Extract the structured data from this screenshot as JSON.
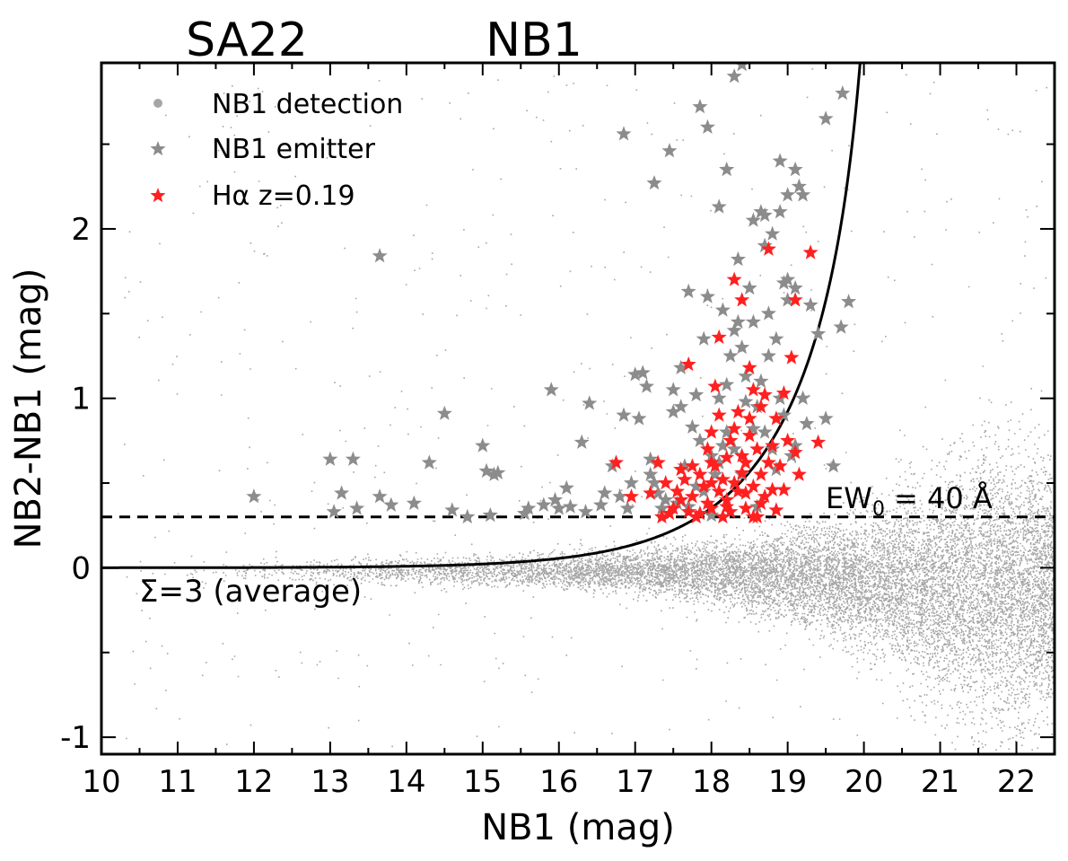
{
  "chart_data": {
    "type": "scatter",
    "title_left": "SA22",
    "title_right": "NB1",
    "xlabel": "NB1 (mag)",
    "ylabel": "NB2-NB1 (mag)",
    "xlim": [
      10,
      22.5
    ],
    "ylim": [
      -1.1,
      2.98
    ],
    "xticks": [
      10,
      11,
      12,
      13,
      14,
      15,
      16,
      17,
      18,
      19,
      20,
      21,
      22
    ],
    "yticks": [
      -1,
      0,
      1,
      2
    ],
    "ytick_labels": [
      "-1",
      "0",
      "1",
      "2"
    ],
    "legend": [
      {
        "label": "NB1 detection",
        "marker": "dot",
        "color": "#a6a6a6"
      },
      {
        "label": "NB1 emitter",
        "marker": "star",
        "color": "#8c8c8c"
      },
      {
        "label": "Hα z=0.19",
        "marker": "star",
        "color": "#ff2020"
      }
    ],
    "legend_position": "top-left",
    "ew_line": {
      "y": 0.3,
      "label_main": "EW",
      "label_sub": "0",
      "label_rest": " = 40 Å"
    },
    "sigma_curve": {
      "label": "Σ=3 (average)",
      "sigma": 3,
      "mag_limit": 20.33
    },
    "emitters": [
      [
        12.0,
        0.42
      ],
      [
        13.0,
        0.64
      ],
      [
        13.3,
        0.64
      ],
      [
        13.15,
        0.44
      ],
      [
        13.35,
        0.35
      ],
      [
        13.05,
        0.33
      ],
      [
        13.65,
        0.42
      ],
      [
        13.8,
        0.37
      ],
      [
        14.1,
        0.38
      ],
      [
        14.3,
        0.62
      ],
      [
        14.5,
        0.91
      ],
      [
        14.6,
        0.34
      ],
      [
        14.8,
        0.3
      ],
      [
        15.0,
        0.72
      ],
      [
        15.05,
        0.57
      ],
      [
        15.15,
        0.55
      ],
      [
        15.2,
        0.56
      ],
      [
        15.1,
        0.31
      ],
      [
        15.55,
        0.32
      ],
      [
        15.6,
        0.35
      ],
      [
        15.8,
        0.37
      ],
      [
        15.9,
        1.05
      ],
      [
        15.95,
        0.4
      ],
      [
        16.0,
        0.35
      ],
      [
        16.1,
        0.47
      ],
      [
        16.15,
        0.36
      ],
      [
        16.3,
        0.74
      ],
      [
        16.35,
        0.33
      ],
      [
        16.4,
        0.97
      ],
      [
        16.55,
        0.37
      ],
      [
        16.6,
        0.44
      ],
      [
        16.7,
        0.6
      ],
      [
        16.8,
        0.42
      ],
      [
        16.85,
        0.9
      ],
      [
        16.9,
        0.35
      ],
      [
        16.95,
        0.5
      ],
      [
        17.0,
        1.14
      ],
      [
        17.05,
        0.88
      ],
      [
        17.1,
        1.15
      ],
      [
        17.15,
        1.07
      ],
      [
        17.2,
        0.55
      ],
      [
        17.25,
        0.5
      ],
      [
        17.3,
        0.44
      ],
      [
        17.35,
        0.35
      ],
      [
        17.4,
        0.4
      ],
      [
        17.5,
        0.92
      ],
      [
        17.6,
        1.18
      ],
      [
        17.65,
        0.6
      ],
      [
        17.7,
        1.63
      ],
      [
        17.75,
        0.83
      ],
      [
        17.8,
        0.48
      ],
      [
        17.85,
        0.75
      ],
      [
        17.9,
        1.35
      ],
      [
        17.95,
        1.6
      ],
      [
        18.0,
        0.66
      ],
      [
        18.05,
        0.55
      ],
      [
        18.1,
        1.0
      ],
      [
        18.15,
        1.52
      ],
      [
        18.2,
        1.08
      ],
      [
        18.25,
        1.25
      ],
      [
        18.3,
        1.4
      ],
      [
        18.35,
        1.45
      ],
      [
        18.4,
        1.3
      ],
      [
        18.45,
        1.13
      ],
      [
        18.5,
        1.65
      ],
      [
        18.55,
        1.45
      ],
      [
        18.6,
        0.95
      ],
      [
        18.65,
        1.1
      ],
      [
        18.7,
        0.8
      ],
      [
        18.75,
        1.5
      ],
      [
        18.8,
        0.7
      ],
      [
        18.85,
        1.35
      ],
      [
        18.9,
        1.0
      ],
      [
        18.95,
        1.68
      ],
      [
        19.0,
        1.58
      ],
      [
        19.05,
        0.66
      ],
      [
        19.1,
        1.65
      ],
      [
        19.2,
        1.0
      ],
      [
        19.3,
        1.55
      ],
      [
        19.4,
        1.38
      ],
      [
        19.5,
        0.88
      ],
      [
        19.6,
        0.6
      ],
      [
        19.7,
        1.42
      ],
      [
        19.8,
        1.57
      ],
      [
        18.55,
        2.05
      ],
      [
        18.7,
        2.08
      ],
      [
        18.8,
        1.97
      ],
      [
        18.9,
        2.4
      ],
      [
        19.0,
        2.2
      ],
      [
        19.1,
        2.35
      ],
      [
        19.15,
        2.25
      ],
      [
        19.2,
        2.2
      ],
      [
        18.65,
        2.1
      ],
      [
        18.7,
        1.9
      ],
      [
        18.2,
        2.35
      ],
      [
        18.1,
        2.13
      ],
      [
        17.95,
        2.6
      ],
      [
        17.85,
        2.72
      ],
      [
        17.45,
        2.46
      ],
      [
        17.25,
        2.27
      ],
      [
        16.85,
        2.56
      ],
      [
        13.65,
        1.84
      ],
      [
        19.5,
        2.65
      ],
      [
        19.72,
        2.8
      ],
      [
        18.4,
        2.97
      ],
      [
        18.3,
        2.9
      ],
      [
        17.7,
        0.36
      ],
      [
        17.9,
        0.45
      ],
      [
        18.1,
        0.62
      ],
      [
        18.3,
        0.7
      ],
      [
        18.0,
        0.31
      ],
      [
        18.6,
        0.36
      ],
      [
        18.4,
        0.55
      ],
      [
        18.2,
        0.8
      ],
      [
        18.85,
        0.58
      ],
      [
        19.1,
        0.72
      ],
      [
        19.25,
        0.85
      ],
      [
        18.45,
        0.98
      ],
      [
        17.55,
        0.38
      ],
      [
        17.2,
        0.64
      ],
      [
        18.95,
        0.9
      ],
      [
        17.8,
        1.02
      ],
      [
        18.35,
        1.82
      ],
      [
        18.55,
        0.82
      ],
      [
        18.75,
        1.25
      ],
      [
        18.9,
        2.1
      ],
      [
        19.0,
        1.7
      ],
      [
        17.6,
        0.95
      ],
      [
        18.15,
        0.72
      ],
      [
        17.5,
        1.05
      ]
    ],
    "halpha": [
      [
        16.75,
        0.62
      ],
      [
        16.95,
        0.42
      ],
      [
        17.2,
        0.44
      ],
      [
        17.3,
        0.62
      ],
      [
        17.35,
        0.3
      ],
      [
        17.4,
        0.5
      ],
      [
        17.45,
        0.32
      ],
      [
        17.5,
        0.35
      ],
      [
        17.55,
        0.45
      ],
      [
        17.6,
        0.4
      ],
      [
        17.65,
        0.52
      ],
      [
        17.7,
        1.2
      ],
      [
        17.7,
        0.33
      ],
      [
        17.75,
        0.42
      ],
      [
        17.8,
        0.3
      ],
      [
        17.85,
        0.55
      ],
      [
        17.9,
        0.48
      ],
      [
        17.95,
        0.38
      ],
      [
        18.0,
        0.35
      ],
      [
        18.0,
        0.8
      ],
      [
        18.05,
        1.07
      ],
      [
        18.05,
        0.6
      ],
      [
        18.1,
        0.45
      ],
      [
        18.1,
        1.36
      ],
      [
        18.15,
        0.3
      ],
      [
        18.15,
        0.52
      ],
      [
        18.2,
        0.65
      ],
      [
        18.2,
        0.4
      ],
      [
        18.25,
        0.75
      ],
      [
        18.25,
        0.33
      ],
      [
        18.3,
        1.7
      ],
      [
        18.3,
        0.5
      ],
      [
        18.35,
        0.45
      ],
      [
        18.35,
        0.92
      ],
      [
        18.4,
        1.58
      ],
      [
        18.4,
        0.56
      ],
      [
        18.45,
        0.62
      ],
      [
        18.45,
        0.35
      ],
      [
        18.5,
        1.18
      ],
      [
        18.5,
        0.78
      ],
      [
        18.55,
        0.48
      ],
      [
        18.55,
        1.05
      ],
      [
        18.6,
        0.3
      ],
      [
        18.6,
        0.7
      ],
      [
        18.65,
        0.55
      ],
      [
        18.65,
        0.95
      ],
      [
        18.7,
        1.02
      ],
      [
        18.7,
        0.42
      ],
      [
        18.75,
        0.62
      ],
      [
        18.75,
        1.88
      ],
      [
        18.8,
        0.46
      ],
      [
        18.85,
        0.88
      ],
      [
        18.85,
        0.34
      ],
      [
        18.9,
        0.6
      ],
      [
        18.95,
        1.03
      ],
      [
        19.0,
        0.75
      ],
      [
        19.05,
        1.24
      ],
      [
        19.1,
        1.58
      ],
      [
        19.15,
        0.55
      ],
      [
        19.3,
        1.86
      ],
      [
        19.4,
        0.74
      ],
      [
        17.85,
        0.32
      ],
      [
        17.95,
        0.7
      ],
      [
        18.1,
        0.9
      ],
      [
        18.3,
        0.82
      ],
      [
        18.5,
        0.88
      ],
      [
        18.8,
        0.72
      ],
      [
        17.6,
        0.58
      ],
      [
        18.0,
        0.5
      ],
      [
        18.2,
        0.36
      ],
      [
        18.45,
        0.44
      ],
      [
        18.65,
        0.38
      ],
      [
        18.4,
        0.66
      ],
      [
        17.75,
        0.6
      ],
      [
        18.95,
        0.46
      ],
      [
        19.1,
        0.68
      ],
      [
        18.0,
        0.62
      ],
      [
        18.55,
        0.3
      ]
    ]
  }
}
